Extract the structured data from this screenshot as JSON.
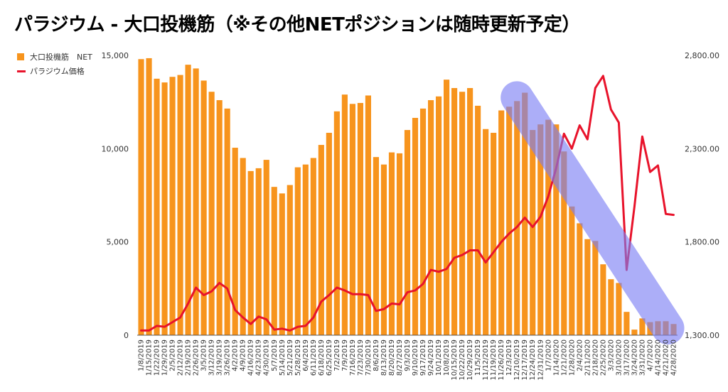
{
  "title": "パラジウム - 大口投機筋（※その他NETポジションは随時更新予定）",
  "colors": {
    "bar": "#f7941d",
    "line": "#e8132b",
    "highlight": "#7a7ef5"
  },
  "chart_data": {
    "type": "bar+line",
    "categories": [
      "1/8/2019",
      "1/15/2019",
      "1/22/2019",
      "1/29/2019",
      "2/5/2019",
      "2/12/2019",
      "2/19/2019",
      "2/26/2019",
      "3/5/2019",
      "3/12/2019",
      "3/19/2019",
      "3/26/2019",
      "4/2/2019",
      "4/9/2019",
      "4/16/2019",
      "4/23/2019",
      "4/30/2019",
      "5/7/2019",
      "5/14/2019",
      "5/21/2019",
      "5/28/2019",
      "6/4/2019",
      "6/11/2019",
      "6/18/2019",
      "6/25/2019",
      "7/2/2019",
      "7/9/2019",
      "7/16/2019",
      "7/23/2019",
      "7/30/2019",
      "8/6/2019",
      "8/13/2019",
      "8/20/2019",
      "8/27/2019",
      "9/3/2019",
      "9/10/2019",
      "9/17/2019",
      "9/24/2019",
      "10/1/2019",
      "10/8/2019",
      "10/15/2019",
      "10/22/2019",
      "10/29/2019",
      "11/5/2019",
      "11/12/2019",
      "11/19/2019",
      "11/26/2019",
      "12/3/2019",
      "12/10/2019",
      "12/17/2019",
      "12/24/2019",
      "12/31/2019",
      "1/7/2020",
      "1/14/2020",
      "1/21/2020",
      "1/28/2020",
      "2/4/2020",
      "2/11/2020",
      "2/18/2020",
      "2/25/2020",
      "3/3/2020",
      "3/10/2020",
      "3/17/2020",
      "3/24/2020",
      "3/31/2020",
      "4/7/2020",
      "4/14/2020",
      "4/21/2020",
      "4/28/2020"
    ],
    "tick_labels": [
      "1/8/2019",
      "1/15/2019",
      "1/22/2019",
      "1/29/2019",
      "2/5/2019",
      "2/12/2019",
      "2/19/2019",
      "2/26/2019",
      "3/5/2019",
      "3/12/2019",
      "3/19/2019",
      "3/26/2019",
      "4/2/2019",
      "4/9/2019",
      "4/16/2019",
      "4/23/2019",
      "4/30/2019",
      "5/7/2019",
      "5/14/2019",
      "5/21/2019",
      "5/28/2019",
      "6/4/2019",
      "6/11/2019",
      "6/18/2019",
      "6/25/2019",
      "7/2/2019",
      "7/9/2019",
      "7/16/2019",
      "7/23/2019",
      "7/30/2019",
      "8/6/2019",
      "8/13/2019",
      "8/20/2019",
      "8/27/2019",
      "9/3/2019",
      "9/10/2019",
      "9/17/2019",
      "9/24/2019",
      "10/1/2019",
      "10/8/2019",
      "10/15/2019",
      "10/22/2019",
      "10/29/2019",
      "11/5/2019",
      "11/12/2019",
      "11/19/2019",
      "11/26/2019",
      "12/3/2019",
      "12/10/2019",
      "12/17/2019",
      "12/24/2019",
      "12/31/2019",
      "1/7/2020",
      "1/14/2020",
      "1/21/2020",
      "1/28/2020",
      "2/4/2020",
      "2/11/2020",
      "2/18/2020",
      "2/25/2020",
      "3/3/2020",
      "3/10/2020",
      "3/17/2020",
      "3/24/2020",
      "3/31/2020",
      "4/7/2020",
      "4/14/2020",
      "4/21/2020",
      "4/28/2020"
    ],
    "series": [
      {
        "name": "大口投機筋　NET",
        "axis": "left",
        "type": "bar",
        "values": [
          14800,
          14850,
          13750,
          13550,
          13850,
          13950,
          14500,
          14300,
          13650,
          13050,
          12600,
          12150,
          10050,
          9500,
          8800,
          8950,
          9400,
          7950,
          7600,
          8050,
          9000,
          9150,
          9500,
          10200,
          10850,
          12000,
          12900,
          12400,
          12450,
          12850,
          9550,
          9150,
          9800,
          9750,
          11000,
          11650,
          12150,
          12600,
          12800,
          13700,
          13250,
          13050,
          13250,
          12300,
          11050,
          10850,
          12050,
          12250,
          12550,
          13000,
          11000,
          11300,
          11550,
          11300,
          9850,
          6900,
          6000,
          5150,
          5050,
          3800,
          3000,
          2800,
          1250,
          300,
          900,
          700,
          750,
          750,
          600
        ]
      },
      {
        "name": "パラジウム価格",
        "axis": "right",
        "type": "line",
        "values": [
          1325,
          1325,
          1350,
          1345,
          1370,
          1395,
          1470,
          1555,
          1515,
          1535,
          1580,
          1550,
          1435,
          1395,
          1360,
          1400,
          1385,
          1330,
          1335,
          1325,
          1345,
          1350,
          1395,
          1480,
          1515,
          1555,
          1540,
          1520,
          1520,
          1515,
          1430,
          1440,
          1470,
          1465,
          1530,
          1540,
          1575,
          1650,
          1640,
          1655,
          1715,
          1730,
          1755,
          1755,
          1690,
          1745,
          1800,
          1845,
          1880,
          1930,
          1880,
          1935,
          2045,
          2195,
          2380,
          2300,
          2425,
          2350,
          2625,
          2690,
          2510,
          2440,
          1650,
          1990,
          2365,
          2175,
          2210,
          1950,
          1945
        ]
      }
    ],
    "y_left": {
      "min": 0,
      "max": 15000,
      "ticks": [
        "0",
        "5,000",
        "10,000",
        "15,000"
      ],
      "tick_values": [
        0,
        5000,
        10000,
        15000
      ]
    },
    "y_right": {
      "min": 1300,
      "max": 2800,
      "ticks": [
        "1,300.00",
        "1,800.00",
        "2,300.00",
        "2,800.00"
      ],
      "tick_values": [
        1300,
        1800,
        2300,
        2800
      ]
    },
    "legend_position": "top-left",
    "grid": false,
    "annotation": {
      "type": "highlight-band",
      "from_category": "12/10/2019",
      "to_category": "4/28/2020"
    }
  }
}
